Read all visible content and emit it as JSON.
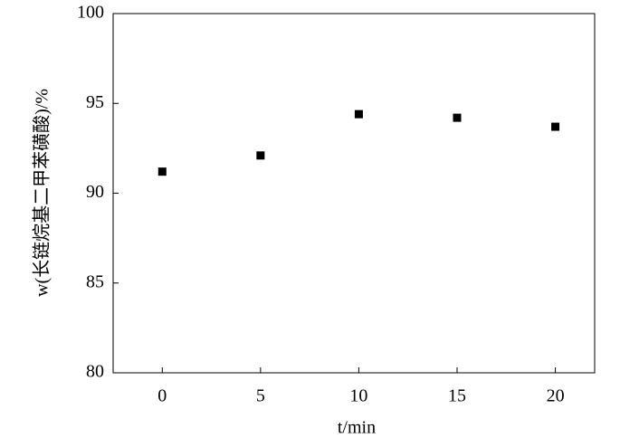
{
  "chart_data": {
    "type": "scatter",
    "x_label": "t/min",
    "y_label": "w(长链烷基二甲苯磺酸)/%",
    "x": [
      0,
      5,
      10,
      15,
      20
    ],
    "values": [
      91.2,
      92.1,
      94.4,
      94.2,
      93.7
    ],
    "color": "#000000",
    "xlim": [
      -2.5,
      22
    ],
    "xticks": [
      0,
      5,
      10,
      15,
      20
    ],
    "ylim": [
      80,
      100
    ],
    "yticks": [
      80,
      85,
      90,
      95,
      100
    ]
  }
}
